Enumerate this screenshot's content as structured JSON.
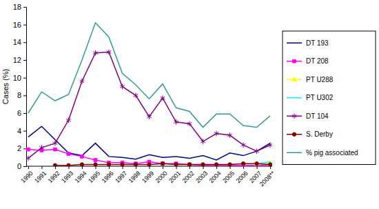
{
  "chart_data": {
    "type": "line",
    "y_label": "Cases (%)",
    "categories": [
      "1990",
      "1991",
      "1992",
      "1993",
      "1994",
      "1995",
      "1996",
      "1997",
      "1998",
      "1999",
      "2000",
      "2001",
      "2002",
      "2003",
      "2004",
      "2005",
      "2006",
      "2007",
      "2008**"
    ],
    "series": [
      {
        "name": "DT 193",
        "color": "#000080",
        "marker": "none",
        "values": [
          3.3,
          4.5,
          3.0,
          1.5,
          1.2,
          2.6,
          1.1,
          1.0,
          0.8,
          1.3,
          1.0,
          1.1,
          0.9,
          1.2,
          0.7,
          1.5,
          1.2,
          1.7,
          2.6
        ]
      },
      {
        "name": "DT 208",
        "color": "#ff00ff",
        "marker": "square",
        "values": [
          1.9,
          1.8,
          1.9,
          1.4,
          1.1,
          0.7,
          0.4,
          0.4,
          0.3,
          0.5,
          0.3,
          0.3,
          0.2,
          0.1,
          0.1,
          0.1,
          0.1,
          0.1,
          0.1
        ]
      },
      {
        "name": "PT U288",
        "color": "#ffff00",
        "marker": "triangle",
        "values": [
          null,
          null,
          null,
          null,
          null,
          null,
          null,
          null,
          null,
          null,
          null,
          null,
          null,
          null,
          null,
          null,
          null,
          0.3,
          0.3
        ]
      },
      {
        "name": "PT U302",
        "color": "#00ffff",
        "marker": "none",
        "values": [
          null,
          null,
          null,
          null,
          null,
          null,
          null,
          null,
          null,
          null,
          null,
          null,
          null,
          null,
          null,
          null,
          null,
          0.3,
          0.5
        ]
      },
      {
        "name": "DT 104",
        "color": "#800080",
        "marker": "asterisk",
        "values": [
          0.9,
          2.1,
          2.6,
          5.2,
          9.6,
          12.8,
          12.9,
          9.0,
          8.0,
          5.6,
          7.7,
          5.0,
          4.8,
          2.8,
          3.7,
          3.5,
          2.4,
          1.7,
          2.4
        ]
      },
      {
        "name": "S. Derby",
        "color": "#800000",
        "marker": "circle",
        "values": [
          null,
          null,
          0.1,
          0.1,
          0.2,
          0.2,
          0.2,
          0.2,
          0.2,
          0.2,
          0.3,
          0.2,
          0.2,
          0.2,
          0.2,
          0.2,
          0.3,
          0.3,
          0.2
        ]
      },
      {
        "name": "% pig associated",
        "color": "#339999",
        "marker": "none",
        "values": [
          6.0,
          8.4,
          7.4,
          8.1,
          12.0,
          16.2,
          14.6,
          10.5,
          9.2,
          7.6,
          9.3,
          6.6,
          6.2,
          4.4,
          5.9,
          5.9,
          4.6,
          4.4,
          5.7
        ]
      }
    ],
    "ylim": [
      0,
      18
    ],
    "yticks": [
      0,
      2,
      4,
      6,
      8,
      10,
      12,
      14,
      16,
      18
    ],
    "grid": false,
    "legend": "right"
  }
}
